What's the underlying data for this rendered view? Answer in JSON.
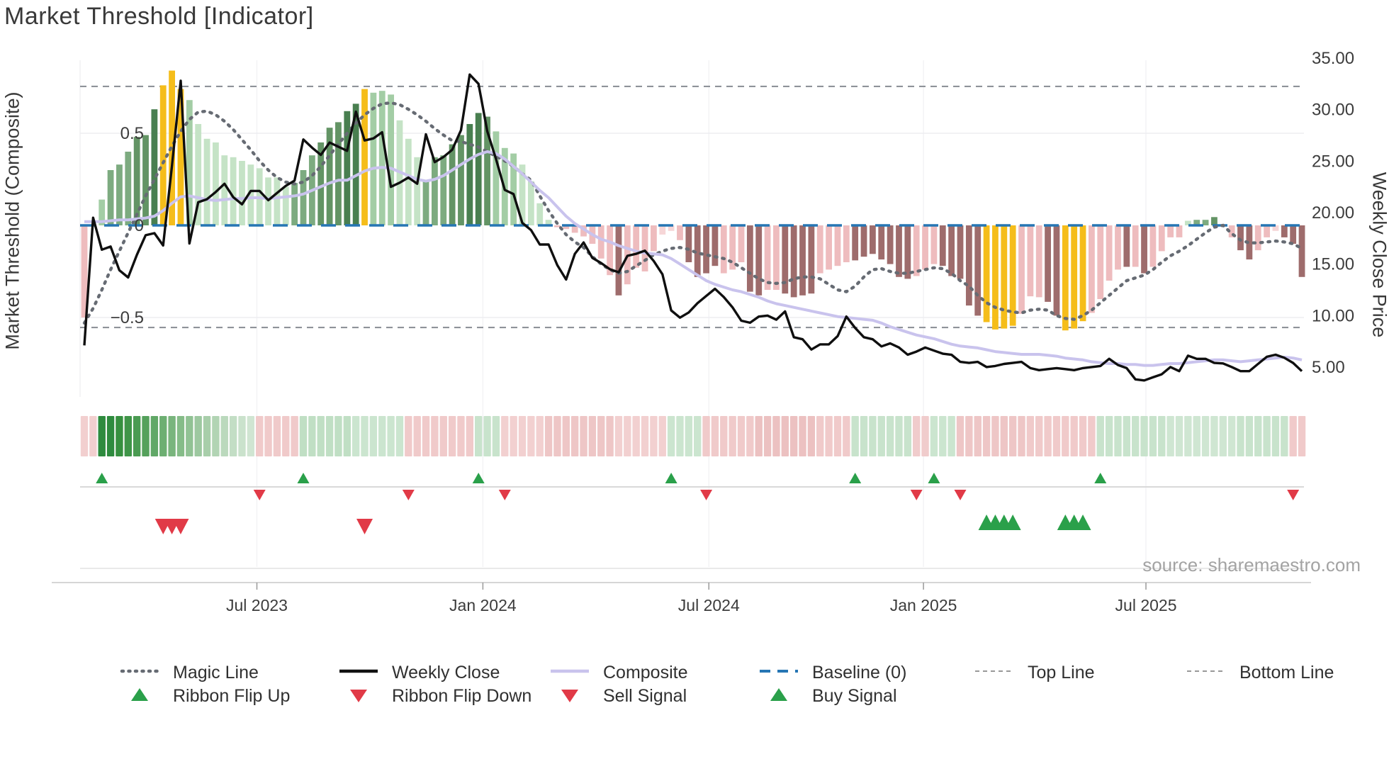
{
  "title": "Market Threshold [Indicator]",
  "source": "source: sharemaestro.com",
  "axes": {
    "left_title": "Market Threshold (Composite)",
    "right_title": "Weekly Close Price",
    "left_ticks": [
      {
        "value": 0.5,
        "label": "0.5"
      },
      {
        "value": 0.0,
        "label": "0"
      },
      {
        "value": -0.5,
        "label": "−0.5"
      }
    ],
    "right_ticks": [
      {
        "value": 35,
        "label": "35.00"
      },
      {
        "value": 30,
        "label": "30.00"
      },
      {
        "value": 25,
        "label": "25.00"
      },
      {
        "value": 20,
        "label": "20.00"
      },
      {
        "value": 15,
        "label": "15.00"
      },
      {
        "value": 10,
        "label": "10.00"
      },
      {
        "value": 5,
        "label": "5.00"
      }
    ],
    "x_ticks": [
      {
        "label": "Jul 2023",
        "week": 19.7
      },
      {
        "label": "Jan 2024",
        "week": 45.5
      },
      {
        "label": "Jul 2024",
        "week": 71.3
      },
      {
        "label": "Jan 2025",
        "week": 95.8
      },
      {
        "label": "Jul 2025",
        "week": 121.2
      }
    ]
  },
  "chart_data": {
    "type": "bar",
    "subtype": "composite-indicator-with-price-overlay",
    "weeks": 140,
    "baseline": 0,
    "top_line": 0.754,
    "bottom_line": -0.554,
    "ylim_left": [
      -0.9,
      0.9
    ],
    "ylim_right": [
      2.0,
      35.5
    ],
    "palette": {
      "g3": "#497f50",
      "g2": "#639465",
      "g1": "#7dab80",
      "g0": "#a3cda5",
      "gp": "#c5e3c6",
      "y": "#f5bd1a",
      "k": "#eebcbe",
      "kp": "#f6d6d7",
      "r": "#9e6c6c",
      "z": "none"
    },
    "bars": {
      "values": [
        -0.5,
        0,
        0.14,
        0.3,
        0.33,
        0.4,
        0.48,
        0.49,
        0.63,
        0.76,
        0.84,
        0.74,
        0.68,
        0.55,
        0.47,
        0.45,
        0.38,
        0.37,
        0.35,
        0.33,
        0.31,
        0.26,
        0.26,
        0.21,
        0.23,
        0.3,
        0.38,
        0.45,
        0.53,
        0.56,
        0.62,
        0.66,
        0.74,
        0.72,
        0.73,
        0.71,
        0.57,
        0.47,
        0.37,
        0.24,
        0.37,
        0.38,
        0.44,
        0.49,
        0.55,
        0.61,
        0.59,
        0.51,
        0.42,
        0.39,
        0.33,
        0.24,
        0.12,
        0.03,
        -0.01,
        -0.02,
        -0.04,
        -0.06,
        -0.1,
        -0.18,
        -0.27,
        -0.38,
        -0.32,
        -0.23,
        -0.25,
        -0.14,
        -0.05,
        -0.03,
        -0.08,
        -0.2,
        -0.28,
        -0.26,
        -0.22,
        -0.26,
        -0.24,
        -0.2,
        -0.36,
        -0.38,
        -0.35,
        -0.35,
        -0.37,
        -0.39,
        -0.38,
        -0.37,
        -0.26,
        -0.24,
        -0.22,
        -0.2,
        -0.19,
        -0.17,
        -0.155,
        -0.185,
        -0.21,
        -0.28,
        -0.29,
        -0.275,
        -0.24,
        -0.21,
        -0.22,
        -0.275,
        -0.29,
        -0.435,
        -0.49,
        -0.525,
        -0.565,
        -0.56,
        -0.545,
        -0.48,
        -0.385,
        -0.39,
        -0.415,
        -0.49,
        -0.57,
        -0.56,
        -0.52,
        -0.475,
        -0.4,
        -0.3,
        -0.24,
        -0.225,
        -0.225,
        -0.26,
        -0.225,
        -0.14,
        -0.065,
        -0.065,
        0.025,
        0.03,
        0.03,
        0.045,
        0,
        -0.065,
        -0.135,
        -0.185,
        -0.135,
        -0.065,
        -0.03,
        -0.065,
        -0.1,
        -0.28
      ],
      "colors": [
        "k",
        "z",
        "g0",
        "g1",
        "g1",
        "g1",
        "g2",
        "g2",
        "g3",
        "y",
        "y",
        "y",
        "g0",
        "gp",
        "gp",
        "gp",
        "gp",
        "gp",
        "gp",
        "gp",
        "gp",
        "gp",
        "gp",
        "gp",
        "g1",
        "g1",
        "g1",
        "g2",
        "g2",
        "g2",
        "g3",
        "g3",
        "y",
        "g0",
        "g0",
        "g0",
        "gp",
        "gp",
        "gp",
        "g1",
        "g1",
        "g1",
        "g2",
        "g2",
        "g3",
        "g3",
        "g2",
        "g0",
        "g0",
        "g0",
        "gp",
        "gp",
        "gp",
        "gp",
        "k",
        "k",
        "k",
        "k",
        "k",
        "k",
        "k",
        "r",
        "k",
        "k",
        "k",
        "k",
        "kp",
        "kp",
        "k",
        "r",
        "r",
        "r",
        "r",
        "k",
        "k",
        "k",
        "r",
        "r",
        "k",
        "k",
        "r",
        "r",
        "r",
        "r",
        "k",
        "k",
        "k",
        "k",
        "r",
        "r",
        "r",
        "r",
        "r",
        "r",
        "r",
        "k",
        "k",
        "k",
        "r",
        "r",
        "r",
        "r",
        "r",
        "y",
        "y",
        "y",
        "y",
        "k",
        "k",
        "k",
        "r",
        "r",
        "y",
        "y",
        "y",
        "k",
        "k",
        "k",
        "k",
        "r",
        "k",
        "r",
        "k",
        "k",
        "k",
        "k",
        "gp",
        "g1",
        "g1",
        "g2",
        "z",
        "k",
        "r",
        "r",
        "k",
        "k",
        "kp",
        "r",
        "r",
        "r"
      ]
    },
    "weekly_close": [
      7.1,
      19.5,
      16.4,
      16.7,
      14.4,
      13.7,
      15.9,
      17.8,
      18,
      16.8,
      24.5,
      32.8,
      17,
      21,
      21.3,
      22,
      22.8,
      21.5,
      20.8,
      22.1,
      22.1,
      21.2,
      21.9,
      22.6,
      23.1,
      27.1,
      26.3,
      25.6,
      26.8,
      26.4,
      26,
      29.8,
      27,
      27.2,
      27.8,
      22.5,
      22.9,
      23.4,
      22.8,
      27.6,
      24.9,
      25.4,
      26.1,
      28,
      33.4,
      32.5,
      27.9,
      25.2,
      22.2,
      21.8,
      19,
      18.3,
      16.9,
      16.9,
      14.9,
      13.5,
      16,
      17.1,
      15.6,
      15.1,
      14.5,
      14.2,
      15.8,
      16,
      16.3,
      15.3,
      14,
      10.5,
      9.8,
      10.3,
      11.2,
      11.9,
      12.6,
      11.8,
      10.8,
      9.5,
      9.3,
      9.9,
      10,
      9.6,
      10.4,
      7.9,
      7.7,
      6.7,
      7.2,
      7.2,
      8,
      9.9,
      8.8,
      7.9,
      7.7,
      7,
      7.3,
      6.9,
      6.2,
      6.5,
      6.9,
      6.6,
      6.3,
      6.2,
      5.5,
      5.4,
      5.5,
      5,
      5.1,
      5.3,
      5.4,
      5.5,
      4.9,
      4.7,
      4.8,
      4.9,
      4.8,
      4.7,
      4.9,
      5,
      5.1,
      5.8,
      5.2,
      4.9,
      3.8,
      3.7,
      4,
      4.3,
      5,
      4.6,
      6.1,
      5.8,
      5.8,
      5.4,
      5.35,
      5,
      4.6,
      4.6,
      5.3,
      6,
      6.2,
      5.9,
      5.4,
      4.6
    ],
    "magic_line": [
      -0.53,
      -0.45,
      -0.35,
      -0.24,
      -0.14,
      -0.04,
      0.06,
      0.16,
      0.25,
      0.34,
      0.43,
      0.51,
      0.575,
      0.615,
      0.62,
      0.6,
      0.565,
      0.52,
      0.465,
      0.41,
      0.35,
      0.3,
      0.26,
      0.235,
      0.225,
      0.235,
      0.27,
      0.32,
      0.38,
      0.44,
      0.5,
      0.555,
      0.6,
      0.635,
      0.66,
      0.665,
      0.655,
      0.63,
      0.6,
      0.565,
      0.525,
      0.49,
      0.46,
      0.455,
      0.44,
      0.425,
      0.4,
      0.375,
      0.35,
      0.32,
      0.28,
      0.245,
      0.16,
      0.08,
      0.01,
      -0.05,
      -0.09,
      -0.12,
      -0.17,
      -0.21,
      -0.24,
      -0.26,
      -0.25,
      -0.22,
      -0.19,
      -0.16,
      -0.14,
      -0.125,
      -0.12,
      -0.13,
      -0.15,
      -0.16,
      -0.17,
      -0.18,
      -0.2,
      -0.23,
      -0.26,
      -0.29,
      -0.31,
      -0.315,
      -0.31,
      -0.29,
      -0.28,
      -0.28,
      -0.29,
      -0.32,
      -0.35,
      -0.36,
      -0.33,
      -0.28,
      -0.24,
      -0.235,
      -0.25,
      -0.26,
      -0.26,
      -0.25,
      -0.24,
      -0.23,
      -0.235,
      -0.26,
      -0.3,
      -0.33,
      -0.38,
      -0.42,
      -0.445,
      -0.46,
      -0.47,
      -0.475,
      -0.46,
      -0.455,
      -0.46,
      -0.49,
      -0.505,
      -0.51,
      -0.49,
      -0.46,
      -0.42,
      -0.38,
      -0.34,
      -0.3,
      -0.285,
      -0.27,
      -0.24,
      -0.2,
      -0.165,
      -0.14,
      -0.11,
      -0.075,
      -0.04,
      -0.01,
      0,
      -0.045,
      -0.08,
      -0.095,
      -0.095,
      -0.09,
      -0.085,
      -0.09,
      -0.1,
      -0.125
    ],
    "composite_line": [
      0.02,
      0.02,
      0.02,
      0.025,
      0.03,
      0.03,
      0.035,
      0.04,
      0.05,
      0.08,
      0.12,
      0.155,
      0.16,
      0.15,
      0.14,
      0.135,
      0.14,
      0.145,
      0.145,
      0.15,
      0.15,
      0.145,
      0.15,
      0.155,
      0.16,
      0.17,
      0.19,
      0.21,
      0.23,
      0.245,
      0.245,
      0.27,
      0.295,
      0.31,
      0.315,
      0.31,
      0.29,
      0.27,
      0.25,
      0.24,
      0.25,
      0.27,
      0.3,
      0.33,
      0.36,
      0.385,
      0.4,
      0.39,
      0.36,
      0.32,
      0.28,
      0.235,
      0.19,
      0.15,
      0.1,
      0.05,
      0.01,
      -0.02,
      -0.05,
      -0.075,
      -0.09,
      -0.11,
      -0.125,
      -0.14,
      -0.15,
      -0.155,
      -0.16,
      -0.18,
      -0.21,
      -0.24,
      -0.27,
      -0.3,
      -0.32,
      -0.335,
      -0.35,
      -0.36,
      -0.375,
      -0.39,
      -0.41,
      -0.425,
      -0.435,
      -0.445,
      -0.455,
      -0.465,
      -0.475,
      -0.485,
      -0.495,
      -0.5,
      -0.505,
      -0.51,
      -0.515,
      -0.53,
      -0.55,
      -0.565,
      -0.58,
      -0.595,
      -0.605,
      -0.615,
      -0.63,
      -0.645,
      -0.655,
      -0.66,
      -0.665,
      -0.675,
      -0.685,
      -0.69,
      -0.695,
      -0.7,
      -0.7,
      -0.7,
      -0.705,
      -0.71,
      -0.72,
      -0.725,
      -0.73,
      -0.74,
      -0.745,
      -0.75,
      -0.75,
      -0.755,
      -0.755,
      -0.76,
      -0.76,
      -0.755,
      -0.75,
      -0.75,
      -0.745,
      -0.74,
      -0.735,
      -0.73,
      -0.73,
      -0.735,
      -0.74,
      -0.735,
      -0.73,
      -0.725,
      -0.72,
      -0.715,
      -0.72,
      -0.73
    ],
    "ribbon": [
      "#f2cfcf",
      "#f2cfcf",
      "#2e8b3e",
      "#2e8b3e",
      "#36903f",
      "#3f9548",
      "#4a9b52",
      "#55a15c",
      "#61a867",
      "#6daf72",
      "#79b57d",
      "#85bc88",
      "#91c294",
      "#9dc8a0",
      "#a8ceaa",
      "#b2d4b4",
      "#bbd9bd",
      "#c3dec5",
      "#cae2cc",
      "#d0e5d2",
      "#f0caca",
      "#f0caca",
      "#f0caca",
      "#f0caca",
      "#f0caca",
      "#c0dfc4",
      "#c0dfc4",
      "#c0dfc4",
      "#c0dfc4",
      "#c0dfc4",
      "#c0dfc4",
      "#cbe5cf",
      "#cbe5cf",
      "#cbe5cf",
      "#cbe5cf",
      "#cbe5cf",
      "#cbe5cf",
      "#f0caca",
      "#f0caca",
      "#f0caca",
      "#f0caca",
      "#f0caca",
      "#f0caca",
      "#f0caca",
      "#f0caca",
      "#c8e3cc",
      "#c8e3cc",
      "#c8e3cc",
      "#f2d0d0",
      "#f2d0d0",
      "#f2d0d0",
      "#f2d0d0",
      "#f2d0d0",
      "#eec6c6",
      "#eec6c6",
      "#eec6c6",
      "#eec6c6",
      "#eec6c6",
      "#eec6c6",
      "#eec6c6",
      "#eec6c6",
      "#f2d0d0",
      "#f2d0d0",
      "#f2d0d0",
      "#f2d0d0",
      "#f2d0d0",
      "#f2d0d0",
      "#cbe5cf",
      "#cbe5cf",
      "#cbe5cf",
      "#cbe5cf",
      "#f0caca",
      "#f0caca",
      "#f0caca",
      "#f0caca",
      "#f0caca",
      "#f0caca",
      "#ecc1c1",
      "#ecc1c1",
      "#ecc1c1",
      "#ecc1c1",
      "#ecc1c1",
      "#ecc1c1",
      "#ecc1c1",
      "#f0caca",
      "#f0caca",
      "#f0caca",
      "#f0caca",
      "#c8e3cc",
      "#c8e3cc",
      "#c8e3cc",
      "#c8e3cc",
      "#c8e3cc",
      "#c8e3cc",
      "#c8e3cc",
      "#f0cccc",
      "#f0cccc",
      "#cbe5cf",
      "#cbe5cf",
      "#cbe5cf",
      "#eec6c6",
      "#eec6c6",
      "#eec6c6",
      "#eec6c6",
      "#eec6c6",
      "#eec6c6",
      "#eec6c6",
      "#eec6c6",
      "#f0caca",
      "#f0caca",
      "#f0caca",
      "#f0caca",
      "#f0caca",
      "#f0caca",
      "#f0caca",
      "#f0caca",
      "#c8e3cc",
      "#c8e3cc",
      "#c8e3cc",
      "#c8e3cc",
      "#c8e3cc",
      "#c8e3cc",
      "#c8e3cc",
      "#c8e3cc",
      "#cfe6d2",
      "#cfe6d2",
      "#cfe6d2",
      "#cfe6d2",
      "#cfe6d2",
      "#cfe6d2",
      "#cfe6d2",
      "#cfe6d2",
      "#c8e3cc",
      "#c8e3cc",
      "#c8e3cc",
      "#c8e3cc",
      "#c8e3cc",
      "#c8e3cc",
      "#f0caca",
      "#f0caca"
    ],
    "signals": {
      "ribbon_flip_up_weeks": [
        2,
        25,
        45,
        67,
        88,
        97,
        116
      ],
      "ribbon_flip_down_weeks": [
        20,
        37,
        48,
        71,
        95,
        100,
        138
      ],
      "sell_weeks": [
        9,
        10,
        11,
        32
      ],
      "buy_weeks": [
        103,
        104,
        105,
        106,
        112,
        113,
        114
      ]
    },
    "series_colors": {
      "weekly_close": "#0f0f0f",
      "magic_line": "#666b73",
      "composite_line": "#c9c3ed",
      "baseline": "#2676b4",
      "top_bottom_line": "#8f9399",
      "signal_up": "#2aa04a",
      "signal_down": "#e13a47"
    }
  },
  "legend": {
    "rows": [
      [
        {
          "type": "dotted-line",
          "color": "#666b73",
          "label": "Magic Line"
        },
        {
          "type": "solid-line",
          "color": "#111111",
          "label": "Weekly Close"
        },
        {
          "type": "solid-line",
          "color": "#c9c3ed",
          "label": "Composite"
        },
        {
          "type": "dashed-line",
          "color": "#2676b4",
          "label": "Baseline (0)"
        },
        {
          "type": "small-dashed-line",
          "color": "#999999",
          "label": "Top Line"
        },
        {
          "type": "small-dashed-line",
          "color": "#999999",
          "label": "Bottom Line"
        }
      ],
      [
        {
          "type": "triangle-up",
          "color": "#2aa04a",
          "label": "Ribbon Flip Up"
        },
        {
          "type": "triangle-down",
          "color": "#e13a47",
          "label": "Ribbon Flip Down"
        },
        {
          "type": "triangle-down",
          "color": "#e13a47",
          "label": "Sell Signal"
        },
        {
          "type": "triangle-up",
          "color": "#2aa04a",
          "label": "Buy Signal"
        }
      ]
    ]
  }
}
